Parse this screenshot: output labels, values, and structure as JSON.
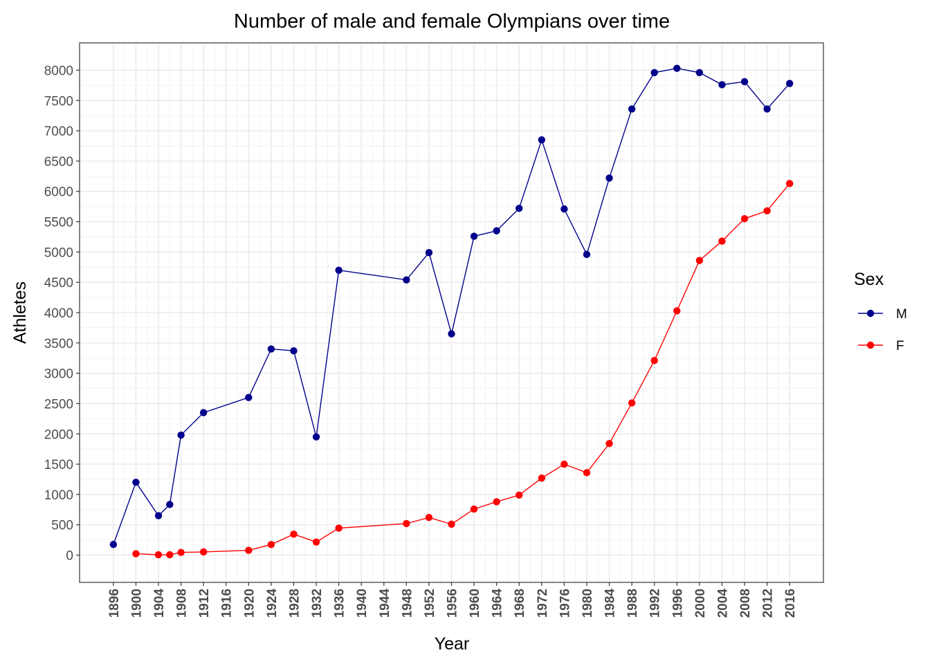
{
  "chart_data": {
    "type": "line",
    "title": "Number of male and female Olympians over time",
    "xlabel": "Year",
    "ylabel": "Athletes",
    "xlim": [
      1890,
      2022
    ],
    "ylim": [
      -450,
      8450
    ],
    "x_ticks": [
      "1896",
      "1900",
      "1904",
      "1908",
      "1912",
      "1916",
      "1920",
      "1924",
      "1928",
      "1932",
      "1936",
      "1940",
      "1944",
      "1948",
      "1952",
      "1956",
      "1960",
      "1964",
      "1968",
      "1972",
      "1976",
      "1980",
      "1984",
      "1988",
      "1992",
      "1996",
      "2000",
      "2004",
      "2008",
      "2012",
      "2016"
    ],
    "y_ticks": [
      "0",
      "500",
      "1000",
      "1500",
      "2000",
      "2500",
      "3000",
      "3500",
      "4000",
      "4500",
      "5000",
      "5500",
      "6000",
      "6500",
      "7000",
      "7500",
      "8000"
    ],
    "grid": true,
    "legend": {
      "title": "Sex",
      "position": "right"
    },
    "series": [
      {
        "name": "M",
        "color": "#00008b",
        "points": [
          [
            1896,
            176
          ],
          [
            1900,
            1201
          ],
          [
            1904,
            650
          ],
          [
            1906,
            835
          ],
          [
            1908,
            1980
          ],
          [
            1912,
            2350
          ],
          [
            1920,
            2600
          ],
          [
            1924,
            3400
          ],
          [
            1928,
            3370
          ],
          [
            1932,
            1950
          ],
          [
            1936,
            4700
          ],
          [
            1948,
            4540
          ],
          [
            1952,
            4990
          ],
          [
            1956,
            3650
          ],
          [
            1960,
            5260
          ],
          [
            1964,
            5350
          ],
          [
            1968,
            5720
          ],
          [
            1972,
            6850
          ],
          [
            1976,
            5710
          ],
          [
            1980,
            4960
          ],
          [
            1984,
            6220
          ],
          [
            1988,
            7360
          ],
          [
            1992,
            7960
          ],
          [
            1996,
            8030
          ],
          [
            2000,
            7960
          ],
          [
            2004,
            7760
          ],
          [
            2008,
            7810
          ],
          [
            2012,
            7360
          ],
          [
            2016,
            7780
          ]
        ]
      },
      {
        "name": "F",
        "color": "#ff0000",
        "points": [
          [
            1900,
            23
          ],
          [
            1904,
            6
          ],
          [
            1906,
            6
          ],
          [
            1908,
            44
          ],
          [
            1912,
            53
          ],
          [
            1920,
            78
          ],
          [
            1924,
            174
          ],
          [
            1928,
            345
          ],
          [
            1932,
            215
          ],
          [
            1936,
            445
          ],
          [
            1948,
            520
          ],
          [
            1952,
            620
          ],
          [
            1956,
            510
          ],
          [
            1960,
            760
          ],
          [
            1964,
            880
          ],
          [
            1968,
            990
          ],
          [
            1972,
            1270
          ],
          [
            1976,
            1500
          ],
          [
            1980,
            1360
          ],
          [
            1984,
            1840
          ],
          [
            1988,
            2510
          ],
          [
            1992,
            3210
          ],
          [
            1996,
            4030
          ],
          [
            2000,
            4860
          ],
          [
            2004,
            5180
          ],
          [
            2008,
            5550
          ],
          [
            2012,
            5680
          ],
          [
            2016,
            6130
          ]
        ]
      }
    ]
  }
}
